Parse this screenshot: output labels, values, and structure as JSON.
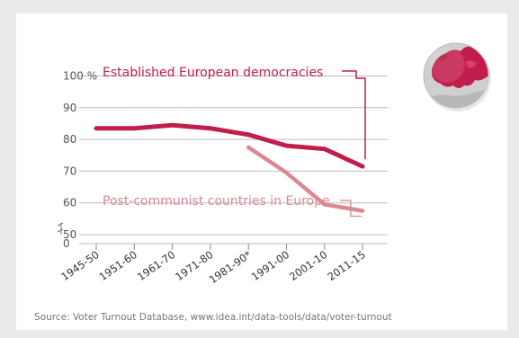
{
  "chart_data": {
    "type": "line",
    "categories": [
      "1945-50",
      "1951-60",
      "1961-70",
      "1971-80",
      "1981-90*",
      "1991-00",
      "2001-10",
      "2011-15"
    ],
    "y_ticks": [
      "0",
      "50",
      "60",
      "70",
      "80",
      "90",
      "100 %"
    ],
    "ylim": [
      50,
      100
    ],
    "y_axis_break": true,
    "grid": true,
    "series": [
      {
        "name": "Established European democracies",
        "color": "#c21e4b",
        "values": [
          83.5,
          83.5,
          84.5,
          83.5,
          81.5,
          78,
          77,
          71.5
        ]
      },
      {
        "name": "Post-communist countries in Europe",
        "color": "#d98a91",
        "values": [
          null,
          null,
          null,
          null,
          77.5,
          69.5,
          59.5,
          57.5
        ]
      }
    ]
  },
  "source": "Source: Voter Turnout Database, www.idea.int/data-tools/data/voter-turnout",
  "globe_icon": "europe-globe-icon"
}
